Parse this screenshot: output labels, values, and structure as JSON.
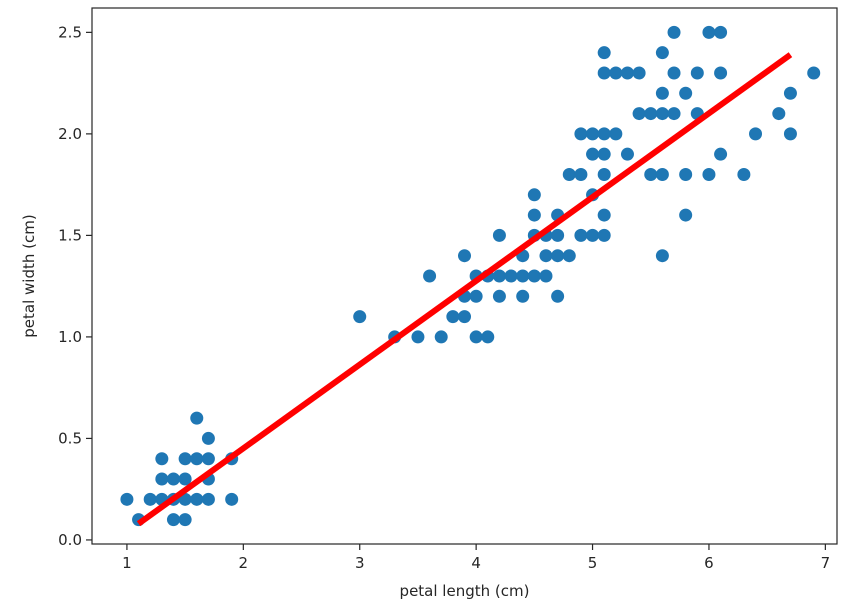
{
  "chart_data": {
    "type": "scatter",
    "xlabel": "petal length (cm)",
    "ylabel": "petal width (cm)",
    "xlim": [
      0.7,
      7.1
    ],
    "ylim": [
      -0.02,
      2.62
    ],
    "xticks": [
      1,
      2,
      3,
      4,
      5,
      6,
      7
    ],
    "yticks": [
      0.0,
      0.5,
      1.0,
      1.5,
      2.0,
      2.5
    ],
    "xtick_labels": [
      "1",
      "2",
      "3",
      "4",
      "5",
      "6",
      "7"
    ],
    "ytick_labels": [
      "0.0",
      "0.5",
      "1.0",
      "1.5",
      "2.0",
      "2.5"
    ],
    "grid": false,
    "point_color": "#1f77b4",
    "fit_line_color": "#ff0000",
    "points": [
      [
        1.0,
        0.2
      ],
      [
        1.1,
        0.1
      ],
      [
        1.2,
        0.2
      ],
      [
        1.3,
        0.2
      ],
      [
        1.3,
        0.3
      ],
      [
        1.3,
        0.4
      ],
      [
        1.4,
        0.1
      ],
      [
        1.4,
        0.2
      ],
      [
        1.4,
        0.3
      ],
      [
        1.5,
        0.1
      ],
      [
        1.5,
        0.2
      ],
      [
        1.5,
        0.3
      ],
      [
        1.5,
        0.4
      ],
      [
        1.6,
        0.2
      ],
      [
        1.6,
        0.4
      ],
      [
        1.6,
        0.6
      ],
      [
        1.7,
        0.2
      ],
      [
        1.7,
        0.3
      ],
      [
        1.7,
        0.4
      ],
      [
        1.7,
        0.5
      ],
      [
        1.9,
        0.2
      ],
      [
        1.9,
        0.4
      ],
      [
        3.0,
        1.1
      ],
      [
        3.3,
        1.0
      ],
      [
        3.5,
        1.0
      ],
      [
        3.6,
        1.3
      ],
      [
        3.7,
        1.0
      ],
      [
        3.8,
        1.1
      ],
      [
        3.9,
        1.1
      ],
      [
        3.9,
        1.2
      ],
      [
        3.9,
        1.4
      ],
      [
        4.0,
        1.0
      ],
      [
        4.0,
        1.2
      ],
      [
        4.0,
        1.3
      ],
      [
        4.1,
        1.0
      ],
      [
        4.1,
        1.3
      ],
      [
        4.2,
        1.2
      ],
      [
        4.2,
        1.3
      ],
      [
        4.2,
        1.5
      ],
      [
        4.3,
        1.3
      ],
      [
        4.4,
        1.2
      ],
      [
        4.4,
        1.3
      ],
      [
        4.4,
        1.4
      ],
      [
        4.5,
        1.3
      ],
      [
        4.5,
        1.5
      ],
      [
        4.5,
        1.6
      ],
      [
        4.5,
        1.7
      ],
      [
        4.6,
        1.3
      ],
      [
        4.6,
        1.4
      ],
      [
        4.6,
        1.5
      ],
      [
        4.7,
        1.2
      ],
      [
        4.7,
        1.4
      ],
      [
        4.7,
        1.5
      ],
      [
        4.7,
        1.6
      ],
      [
        4.8,
        1.4
      ],
      [
        4.8,
        1.8
      ],
      [
        4.9,
        1.5
      ],
      [
        4.9,
        1.8
      ],
      [
        4.9,
        2.0
      ],
      [
        5.0,
        1.5
      ],
      [
        5.0,
        1.7
      ],
      [
        5.0,
        1.9
      ],
      [
        5.0,
        2.0
      ],
      [
        5.1,
        1.5
      ],
      [
        5.1,
        1.6
      ],
      [
        5.1,
        1.8
      ],
      [
        5.1,
        1.9
      ],
      [
        5.1,
        2.0
      ],
      [
        5.1,
        2.3
      ],
      [
        5.1,
        2.4
      ],
      [
        5.2,
        2.0
      ],
      [
        5.2,
        2.3
      ],
      [
        5.3,
        1.9
      ],
      [
        5.3,
        2.3
      ],
      [
        5.4,
        2.1
      ],
      [
        5.4,
        2.3
      ],
      [
        5.5,
        1.8
      ],
      [
        5.5,
        2.1
      ],
      [
        5.6,
        1.4
      ],
      [
        5.6,
        1.8
      ],
      [
        5.6,
        2.1
      ],
      [
        5.6,
        2.2
      ],
      [
        5.6,
        2.4
      ],
      [
        5.7,
        2.1
      ],
      [
        5.7,
        2.3
      ],
      [
        5.7,
        2.5
      ],
      [
        5.8,
        1.6
      ],
      [
        5.8,
        1.8
      ],
      [
        5.8,
        2.2
      ],
      [
        5.9,
        2.1
      ],
      [
        5.9,
        2.3
      ],
      [
        6.0,
        1.8
      ],
      [
        6.0,
        2.5
      ],
      [
        6.1,
        1.9
      ],
      [
        6.1,
        2.3
      ],
      [
        6.1,
        2.5
      ],
      [
        6.3,
        1.8
      ],
      [
        6.4,
        2.0
      ],
      [
        6.6,
        2.1
      ],
      [
        6.7,
        2.0
      ],
      [
        6.7,
        2.2
      ],
      [
        6.9,
        2.3
      ]
    ],
    "fit_line": {
      "x": [
        1.1,
        6.7
      ],
      "y": [
        0.08,
        2.39
      ]
    }
  }
}
